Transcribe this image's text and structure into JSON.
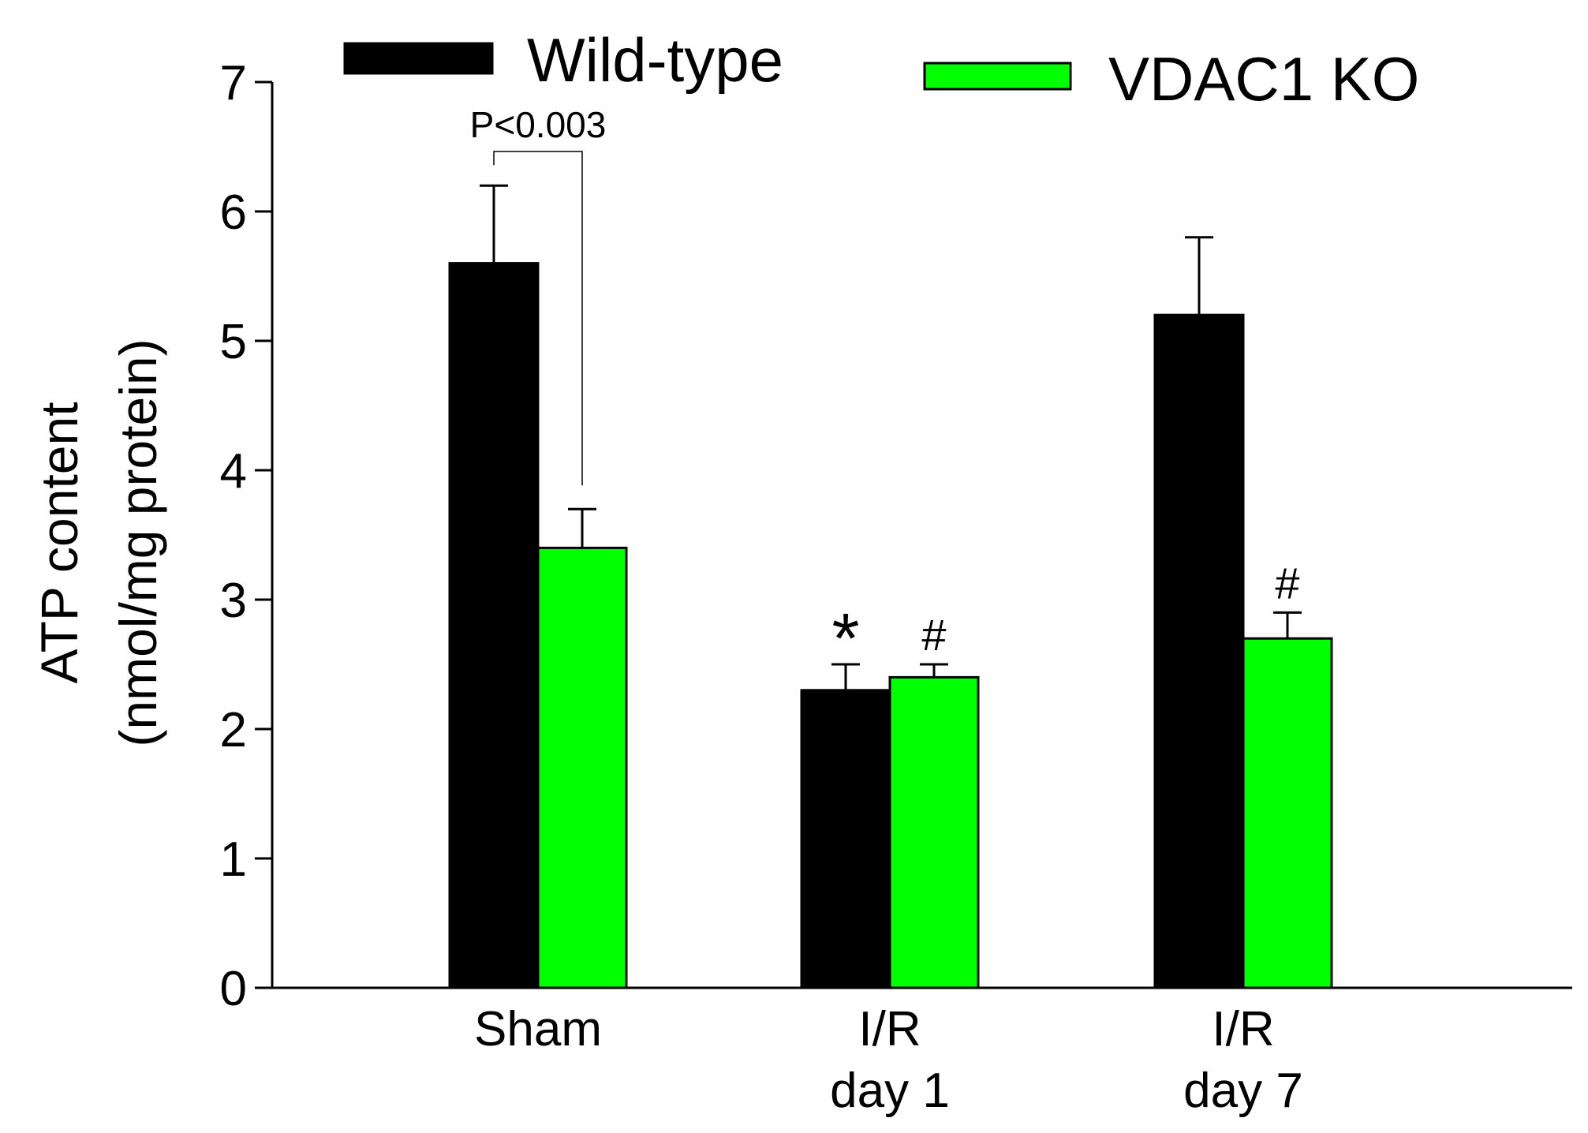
{
  "chart_data": {
    "type": "bar",
    "categories": [
      [
        "Sham"
      ],
      [
        "I/R",
        "day 1"
      ],
      [
        "I/R",
        "day 7"
      ]
    ],
    "series": [
      {
        "name": "Wild-type",
        "color": "#000000",
        "values": [
          5.6,
          2.3,
          5.2
        ],
        "errors": [
          0.6,
          0.2,
          0.6
        ],
        "markers": [
          "",
          "*",
          ""
        ]
      },
      {
        "name": "VDAC1 KO",
        "color": "#00ff00",
        "values": [
          3.4,
          2.4,
          2.7
        ],
        "errors": [
          0.3,
          0.1,
          0.2
        ],
        "markers": [
          "",
          "#",
          "#"
        ]
      }
    ],
    "ylabel": [
      "ATP content",
      "(nmol/mg protein)"
    ],
    "xlabel": "",
    "ylim": [
      0,
      7
    ],
    "yticks": [
      0,
      1,
      2,
      3,
      4,
      5,
      6,
      7
    ],
    "grid": false,
    "legend_position": "top",
    "annotations": [
      {
        "text": "P<0.003",
        "category_index": 0,
        "series_from": 0,
        "series_to": 1
      }
    ]
  }
}
